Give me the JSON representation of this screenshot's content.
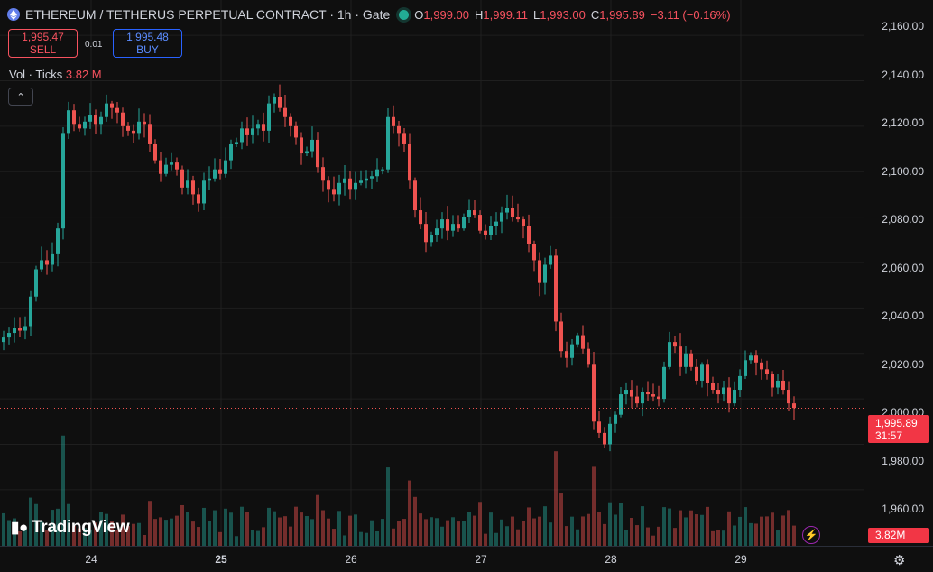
{
  "header": {
    "title": "ETHEREUM / TETHERUS PERPETUAL CONTRACT · 1h · Gate",
    "o_key": "O",
    "o_val": "1,999.00",
    "h_key": "H",
    "h_val": "1,999.11",
    "l_key": "L",
    "l_val": "1,993.00",
    "c_key": "C",
    "c_val": "1,995.89",
    "change": "−3.11 (−0.16%)"
  },
  "trade": {
    "sell_price": "1,995.47",
    "sell_label": "SELL",
    "spread": "0.01",
    "buy_price": "1,995.48",
    "buy_label": "BUY"
  },
  "volume_legend": {
    "label": "Vol · Ticks",
    "value": "3.82 M"
  },
  "price_axis": [
    "2,160.00",
    "2,140.00",
    "2,120.00",
    "2,100.00",
    "2,080.00",
    "2,060.00",
    "2,040.00",
    "2,020.00",
    "2,000.00",
    "1,980.00",
    "1,960.00"
  ],
  "time_axis": [
    "24",
    "25",
    "26",
    "27",
    "28",
    "29"
  ],
  "last_price": {
    "price": "1,995.89",
    "countdown": "31:57"
  },
  "last_volume": "3.82M",
  "brand": "TradingView",
  "colors": {
    "up": "#26a69a",
    "down": "#ef5350",
    "bg": "#0f0f0f",
    "grid": "#1f1f1f"
  },
  "chart_data": {
    "type": "candlestick",
    "interval": "1h",
    "ylim": [
      1952,
      2164
    ],
    "x_ticks": [
      "24",
      "25",
      "26",
      "27",
      "28",
      "29"
    ],
    "ohlc_close_series": [
      2027,
      2029,
      2031,
      2030,
      2032,
      2045,
      2057,
      2061,
      2059,
      2064,
      2075,
      2117,
      2127,
      2121,
      2119,
      2122,
      2125,
      2121,
      2124,
      2130,
      2128,
      2126,
      2120,
      2118,
      2117,
      2122,
      2121,
      2112,
      2105,
      2099,
      2103,
      2104,
      2101,
      2093,
      2096,
      2090,
      2086,
      2096,
      2097,
      2101,
      2099,
      2105,
      2112,
      2113,
      2119,
      2116,
      2119,
      2121,
      2118,
      2130,
      2133,
      2128,
      2124,
      2120,
      2115,
      2108,
      2109,
      2114,
      2102,
      2096,
      2092,
      2090,
      2095,
      2097,
      2092,
      2095,
      2096,
      2097,
      2098,
      2101,
      2101,
      2124,
      2120,
      2117,
      2112,
      2096,
      2083,
      2077,
      2069,
      2072,
      2075,
      2079,
      2074,
      2077,
      2075,
      2080,
      2083,
      2081,
      2074,
      2072,
      2076,
      2078,
      2082,
      2084,
      2080,
      2079,
      2076,
      2068,
      2061,
      2051,
      2059,
      2063,
      2034,
      2021,
      2018,
      2024,
      2028,
      2022,
      2015,
      1990,
      1985,
      1980,
      1989,
      1993,
      2002,
      2004,
      2001,
      1998,
      2003,
      2002,
      2001,
      2000,
      2014,
      2025,
      2023,
      2014,
      2020,
      2014,
      2008,
      2015,
      2007,
      2004,
      2002,
      2005,
      1998,
      2004,
      2010,
      2017,
      2019,
      2016,
      2013,
      2011,
      2005,
      2008,
      2004,
      1998,
      1996
    ],
    "volume_unit": "M",
    "last_close": 1995.89,
    "last_volume": 3.82
  }
}
